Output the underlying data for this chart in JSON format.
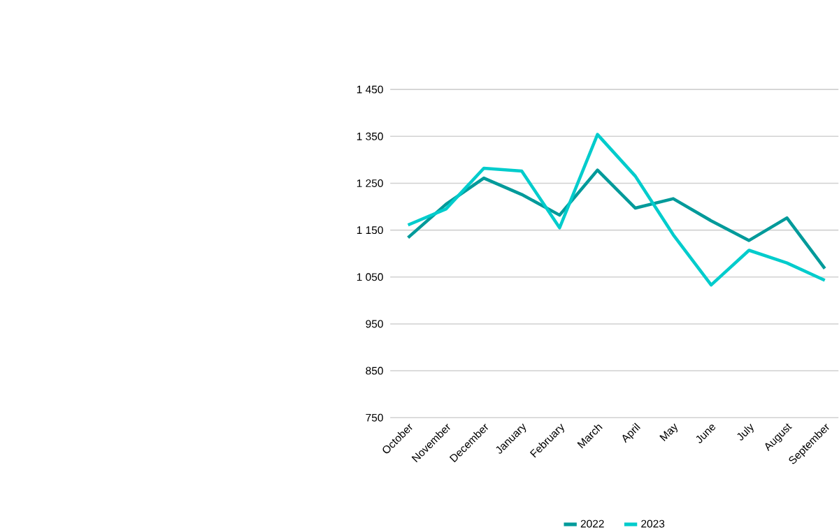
{
  "chart_data": {
    "type": "line",
    "categories": [
      "October",
      "November",
      "December",
      "January",
      "February",
      "March",
      "April",
      "May",
      "June",
      "July",
      "August",
      "September"
    ],
    "series": [
      {
        "name": "2022",
        "color": "#009a9a",
        "values": [
          1134,
          1205,
          1261,
          1226,
          1182,
          1278,
          1197,
          1217,
          1170,
          1128,
          1176,
          1068
        ]
      },
      {
        "name": "2023",
        "color": "#00cccc",
        "values": [
          1161,
          1195,
          1282,
          1276,
          1155,
          1354,
          1265,
          1140,
          1033,
          1107,
          1080,
          1043
        ]
      }
    ],
    "ylim": [
      750,
      1450
    ],
    "yticks": [
      750,
      850,
      950,
      {
        "value": 1050,
        "label": "1 050"
      },
      {
        "value": 1150,
        "label": "1 150"
      },
      {
        "value": 1250,
        "label": "1 250"
      },
      {
        "value": 1350,
        "label": "1 350"
      },
      {
        "value": 1450,
        "label": "1 450"
      }
    ],
    "grid": "y",
    "legend": "bottom",
    "marker": "none",
    "line_style": "solid"
  }
}
